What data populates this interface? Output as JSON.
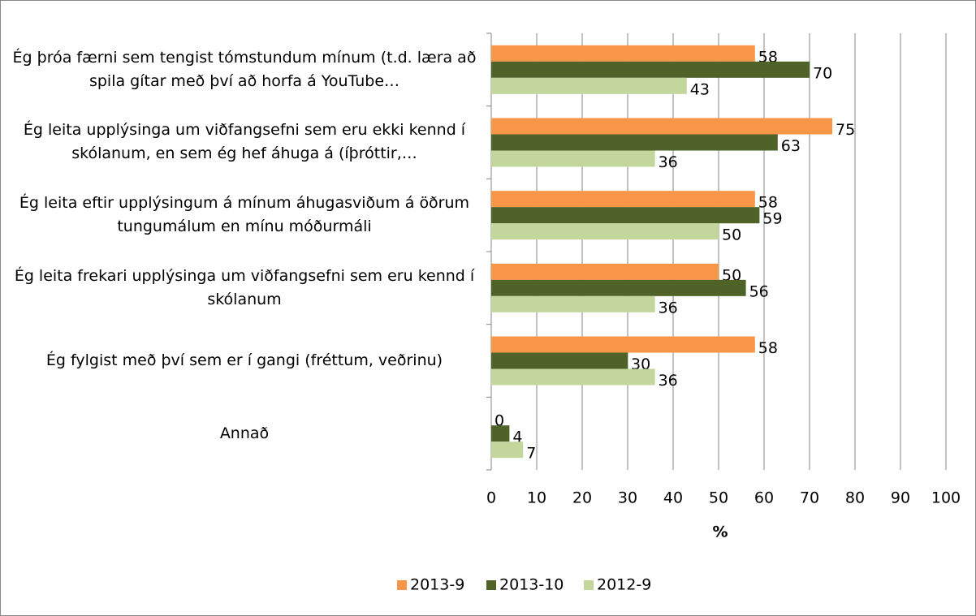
{
  "chart_data": {
    "type": "bar",
    "orientation": "horizontal",
    "categories": [
      "Ég þróa færni sem tengist tómstundum mínum (t.d. læra að spila gítar með því að horfa á YouTube…",
      "Ég leita upplýsinga um viðfangsefni sem eru ekki kennd í skólanum, en sem ég hef áhuga á (íþróttir,…",
      "Ég leita eftir upplýsingum á mínum áhugasviðum á öðrum tungumálum en mínu móðurmáli",
      "Ég leita frekari upplýsinga um viðfangsefni sem eru kennd í skólanum",
      "Ég fylgist með því sem er í gangi (fréttum, veðrinu)",
      "Annað"
    ],
    "series": [
      {
        "name": "2013-9",
        "color": "#f79646",
        "values": [
          58,
          75,
          58,
          50,
          58,
          0
        ]
      },
      {
        "name": "2013-10",
        "color": "#4f6228",
        "values": [
          70,
          63,
          59,
          56,
          30,
          4
        ]
      },
      {
        "name": "2012-9",
        "color": "#c3d69b",
        "values": [
          43,
          36,
          50,
          36,
          36,
          7
        ]
      }
    ],
    "xlabel": "%",
    "xlim": [
      0,
      100
    ],
    "xticks": [
      0,
      10,
      20,
      30,
      40,
      50,
      60,
      70,
      80,
      90,
      100
    ],
    "grid": true,
    "legend": "bottom"
  }
}
